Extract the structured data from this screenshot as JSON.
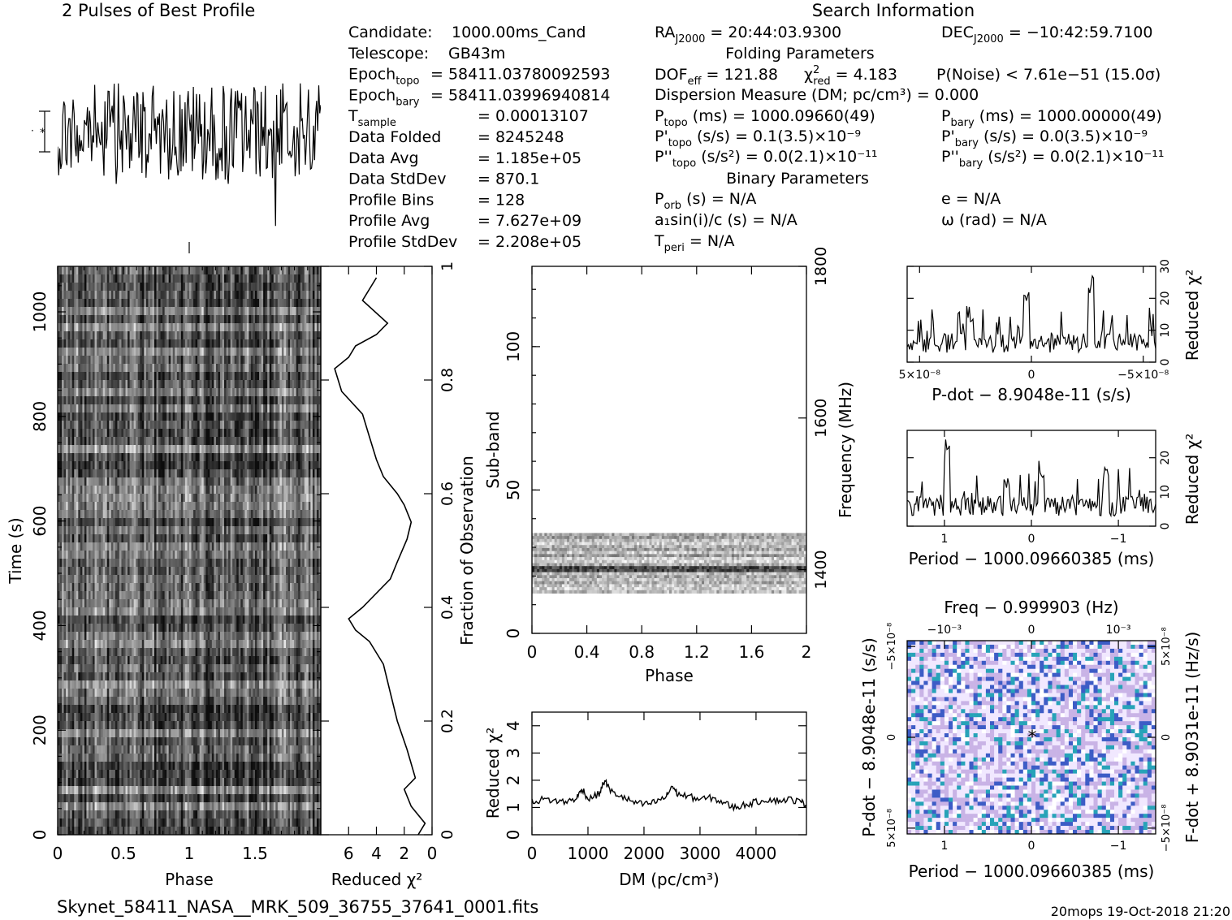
{
  "header": {
    "profile_title": "2 Pulses of Best Profile",
    "search_title": "Search Information",
    "folding_title": "Folding Parameters",
    "binary_title": "Binary Parameters",
    "filename": "Skynet_58411_NASA__MRK_509_36755_37641_0001.fits",
    "footer_info": "20mops 19-Oct-2018 21:20"
  },
  "obs_info": [
    {
      "label": "Candidate:",
      "sub": "",
      "value": "1000.00ms_Cand"
    },
    {
      "label": "Telescope:",
      "sub": "",
      "value": "GB43m"
    },
    {
      "label": "Epoch",
      "sub": "topo",
      "value": "= 58411.03780092593"
    },
    {
      "label": "Epoch",
      "sub": "bary",
      "value": "= 58411.03996940814"
    },
    {
      "label": "T",
      "sub": "sample",
      "value": "=   0.00013107"
    },
    {
      "label": "Data Folded",
      "sub": "",
      "value": "=   8245248"
    },
    {
      "label": "Data Avg",
      "sub": "",
      "value": "=   1.185e+05"
    },
    {
      "label": "Data StdDev",
      "sub": "",
      "value": "=   870.1"
    },
    {
      "label": "Profile Bins",
      "sub": "",
      "value": "=   128"
    },
    {
      "label": "Profile Avg",
      "sub": "",
      "value": "=   7.627e+09"
    },
    {
      "label": "Profile StdDev",
      "sub": "",
      "value": "=   2.208e+05"
    }
  ],
  "search_info": {
    "ra": "= 20:44:03.9300",
    "dec": "= −10:42:59.7100",
    "dof": "= 121.88",
    "chi2red": "= 4.183",
    "pnoise": "P(Noise) < 7.61e−51   (15.0σ)",
    "dm": "Dispersion Measure (DM; pc/cm³) = 0.000",
    "ptopo": "(ms) =   1000.09660(49)",
    "pbary": "(ms) =   1000.00000(49)",
    "pdtopo": "(s/s) =  0.1(3.5)×10⁻⁹",
    "pdbary": "(s/s) = 0.0(3.5)×10⁻⁹",
    "pddtopo": "(s/s²) = 0.0(2.1)×10⁻¹¹",
    "pddbary": "(s/s²) = 0.0(2.1)×10⁻¹¹",
    "porb": "(s) = N/A",
    "ecc": "e = N/A",
    "a1sini": "a₁sin(i)/c (s) = N/A",
    "omega": "ω (rad) = N/A",
    "tperi": "= N/A"
  },
  "axes": {
    "phase": "Phase",
    "time": "Time (s)",
    "reduced_chi2": "Reduced χ²",
    "fraction_obs": "Fraction of Observation",
    "subband": "Sub-band",
    "frequency": "Frequency (MHz)",
    "dm": "DM (pc/cm³)",
    "pdot": "P-dot − 8.9048e-11 (s/s)",
    "period": "Period − 1000.09660385 (ms)",
    "freq_top": "Freq − 0.999903 (Hz)",
    "pdot_left": "P-dot − 8.9048e-11 (s/s)",
    "fdot_right": "F-dot + 8.9031e-11 (Hz/s)"
  },
  "chart_data": [
    {
      "type": "line",
      "title": "2 Pulses of Best Profile",
      "x": [
        0,
        2
      ],
      "xlabel": "",
      "ylabel": "",
      "note": "noisy profile, 2 pulses"
    },
    {
      "type": "heatmap",
      "xlabel": "Phase",
      "ylabel": "Time (s)",
      "xlim": [
        0,
        2
      ],
      "ylim": [
        0,
        1087
      ],
      "xticks": [
        "0",
        "0.5",
        "1",
        "1.5"
      ],
      "yticks": [
        "0",
        "200",
        "400",
        "600",
        "800",
        "1000"
      ]
    },
    {
      "type": "line",
      "xlabel": "Reduced χ²",
      "ylabel": "Fraction of Observation",
      "xlim": [
        8,
        0
      ],
      "ylim": [
        0,
        1
      ],
      "xticks": [
        "6",
        "4",
        "2",
        "0"
      ],
      "yticks": [
        "0",
        "0.2",
        "0.4",
        "0.6",
        "0.8",
        "1"
      ],
      "x": [
        1.0,
        0.5,
        1.5,
        2.0,
        1.2,
        1.8,
        2.5,
        3.0,
        3.5,
        4.5,
        5.5,
        6.0,
        5.0,
        4.2,
        3.0,
        2.5,
        1.8,
        1.5,
        2.0,
        2.5,
        3.5,
        4.0,
        4.5,
        5.0,
        6.5,
        7.0,
        6.0,
        5.5,
        4.0,
        3.2,
        5.0,
        4.0
      ],
      "y": [
        0.0,
        0.02,
        0.05,
        0.08,
        0.1,
        0.15,
        0.2,
        0.25,
        0.3,
        0.34,
        0.36,
        0.38,
        0.4,
        0.42,
        0.45,
        0.48,
        0.52,
        0.55,
        0.58,
        0.6,
        0.63,
        0.66,
        0.7,
        0.74,
        0.78,
        0.82,
        0.84,
        0.86,
        0.88,
        0.9,
        0.94,
        0.98
      ]
    },
    {
      "type": "heatmap",
      "xlabel": "Phase",
      "ylabel": "Sub-band",
      "y2label": "Frequency (MHz)",
      "xlim": [
        0,
        2
      ],
      "ylim": [
        0,
        128
      ],
      "xticks": [
        "0",
        "0.4",
        "0.8",
        "1.2",
        "1.6",
        "2"
      ],
      "yticks": [
        "0",
        "50",
        "100"
      ],
      "y2ticks": [
        "1400",
        "1600",
        "1800"
      ],
      "data_band": [
        14,
        35
      ]
    },
    {
      "type": "line",
      "xlabel": "DM (pc/cm³)",
      "ylabel": "Reduced χ²",
      "xlim": [
        0,
        4900
      ],
      "ylim": [
        0,
        4.5
      ],
      "xticks": [
        "0",
        "1000",
        "2000",
        "3000",
        "4000"
      ],
      "yticks": [
        "0",
        "1",
        "2",
        "3",
        "4"
      ],
      "x": [
        0,
        200,
        400,
        600,
        800,
        900,
        1000,
        1200,
        1300,
        1400,
        1600,
        1800,
        2000,
        2200,
        2400,
        2500,
        2600,
        2800,
        3000,
        3200,
        3400,
        3600,
        3800,
        4000,
        4200,
        4400,
        4600,
        4800,
        4900
      ],
      "y": [
        1.2,
        1.3,
        1.25,
        1.2,
        1.35,
        1.7,
        1.3,
        1.5,
        2.0,
        1.6,
        1.4,
        1.2,
        1.1,
        1.2,
        1.4,
        1.8,
        1.5,
        1.4,
        1.3,
        1.35,
        1.2,
        1.0,
        1.1,
        1.2,
        1.3,
        1.25,
        1.3,
        1.2,
        1.1
      ]
    },
    {
      "type": "line",
      "xlabel": "P-dot − 8.9048e-11 (s/s)",
      "ylabel": "Reduced χ²",
      "xlim": [
        5e-08,
        -5e-08
      ],
      "ylim": [
        0,
        30
      ],
      "xticks": [
        "5×10⁻⁸",
        "0",
        "−5×10⁻⁸"
      ],
      "yticks": [
        "0",
        "10",
        "20",
        "30"
      ]
    },
    {
      "type": "line",
      "xlabel": "Period − 1000.09660385 (ms)",
      "ylabel": "Reduced χ²",
      "xlim": [
        1.5,
        -1.5
      ],
      "ylim": [
        0,
        28
      ],
      "xticks": [
        "1",
        "0",
        "−1"
      ],
      "yticks": [
        "0",
        "10",
        "20"
      ]
    },
    {
      "type": "heatmap",
      "xlabel": "Period − 1000.09660385 (ms)",
      "ylabel": "P-dot − 8.9048e-11 (s/s)",
      "x2label": "Freq − 0.999903 (Hz)",
      "y2label": "F-dot + 8.9031e-11 (Hz/s)",
      "xticks": [
        "1",
        "0",
        "−1"
      ],
      "x2ticks": [
        "−10⁻³",
        "0",
        "10⁻³"
      ],
      "yticks": [
        "5×10⁻⁸",
        "0",
        "−5×10⁻⁸"
      ],
      "y2ticks": [
        "−5×10⁻⁸",
        "0",
        "5×10⁻⁸"
      ],
      "colors": [
        "#c9b3e6",
        "#f1e8ff",
        "#3d5cc6",
        "#27a3b8",
        "#ffffff"
      ]
    }
  ]
}
